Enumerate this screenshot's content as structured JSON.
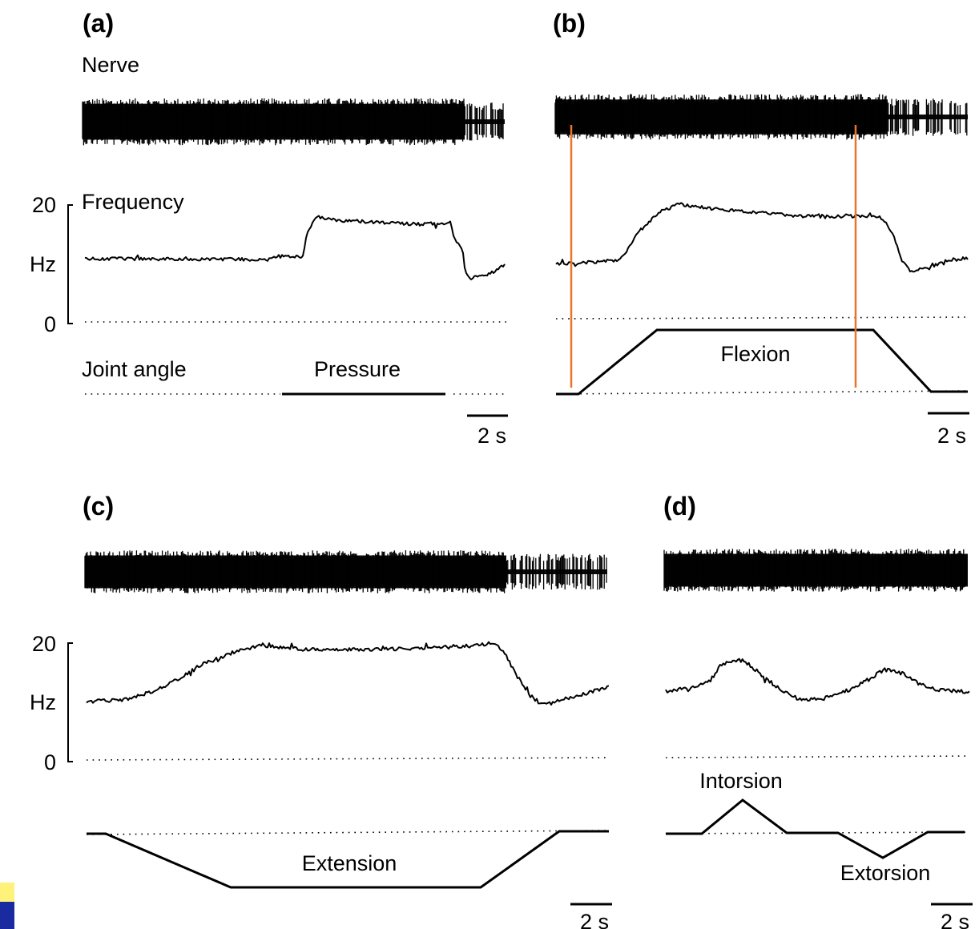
{
  "figure": {
    "panels": {
      "a": {
        "label": "(a)",
        "nerve_label": "Nerve",
        "frequency_label": "Frequency",
        "y_ticks": {
          "top": "20",
          "mid": "Hz",
          "bottom": "0"
        },
        "joint_angle_label": "Joint angle",
        "stimulus_label": "Pressure",
        "scale_bar": "2 s"
      },
      "b": {
        "label": "(b)",
        "stimulus_label": "Flexion",
        "scale_bar": "2 s"
      },
      "c": {
        "label": "(c)",
        "y_ticks": {
          "top": "20",
          "mid": "Hz",
          "bottom": "0"
        },
        "stimulus_label": "Extension",
        "scale_bar": "2 s"
      },
      "d": {
        "label": "(d)",
        "stimulus_label_up": "Intorsion",
        "stimulus_label_down": "Extorsion",
        "scale_bar": "2 s"
      }
    },
    "colors": {
      "trace": "#000000",
      "marker_lines": "#e8742e",
      "corner_accent_yellow": "#fff27a",
      "corner_accent_blue": "#1a2aa0"
    }
  }
}
